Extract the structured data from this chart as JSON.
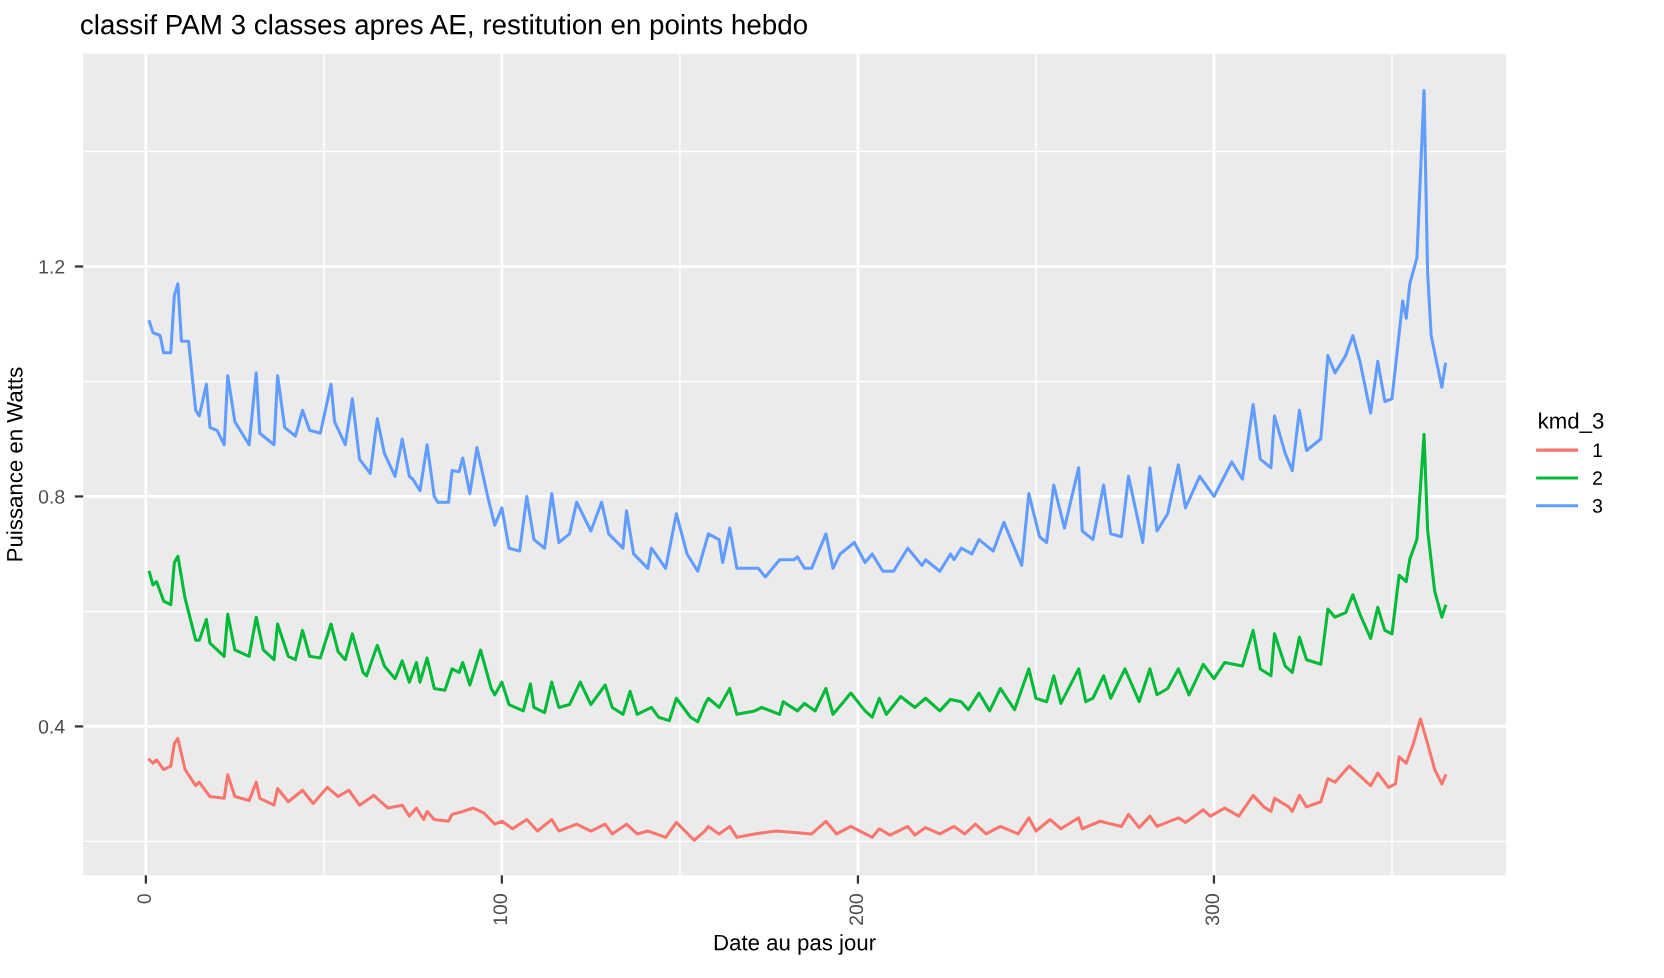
{
  "chart_data": {
    "type": "line",
    "title": "classif PAM 3 classes apres AE, restitution en points hebdo",
    "xlabel": "Date au pas jour",
    "ylabel": "Puissance en Watts",
    "legend_title": "kmd_3",
    "legend": "right",
    "grid": true,
    "marker": "none",
    "line_style": "solid",
    "xlim": [
      -17.6,
      382
    ],
    "xticks": [
      0,
      100,
      200,
      300
    ],
    "ylim": [
      0.141,
      1.57
    ],
    "yticks": [
      0.4,
      0.8,
      1.2
    ],
    "series": [
      {
        "name": "1",
        "color": "#f8766d",
        "x": [
          1,
          2,
          3,
          5,
          7,
          8,
          9,
          11,
          14,
          15,
          18,
          22,
          23,
          25,
          29,
          31,
          32,
          36,
          37,
          40,
          44,
          47,
          51,
          54,
          57,
          60,
          64,
          68,
          72,
          74,
          76,
          78,
          79,
          81,
          85,
          86,
          89,
          92,
          95,
          98,
          100,
          103,
          107,
          110,
          114,
          116,
          121,
          125,
          129,
          131,
          135,
          138,
          141,
          146,
          149,
          154,
          157,
          158,
          161,
          164,
          166,
          171,
          177,
          183,
          187,
          191,
          194,
          198,
          204,
          206,
          209,
          214,
          216,
          219,
          223,
          227,
          230,
          233,
          236,
          240,
          245,
          248,
          250,
          254,
          257,
          262,
          263,
          268,
          274,
          276,
          279,
          282,
          284,
          290,
          292,
          297,
          299,
          303,
          307,
          311,
          314,
          316,
          317,
          321,
          322,
          324,
          326,
          330,
          332,
          334,
          338,
          341,
          344,
          346,
          349,
          351,
          352,
          354,
          356,
          358,
          360,
          362,
          364,
          365
        ],
        "values": [
          0.342,
          0.336,
          0.342,
          0.325,
          0.331,
          0.37,
          0.379,
          0.325,
          0.297,
          0.303,
          0.278,
          0.275,
          0.316,
          0.278,
          0.271,
          0.303,
          0.275,
          0.263,
          0.292,
          0.269,
          0.289,
          0.266,
          0.294,
          0.278,
          0.289,
          0.263,
          0.28,
          0.258,
          0.263,
          0.244,
          0.258,
          0.238,
          0.252,
          0.238,
          0.235,
          0.247,
          0.252,
          0.258,
          0.249,
          0.23,
          0.235,
          0.222,
          0.238,
          0.218,
          0.238,
          0.218,
          0.23,
          0.218,
          0.23,
          0.213,
          0.23,
          0.213,
          0.218,
          0.207,
          0.233,
          0.202,
          0.218,
          0.226,
          0.213,
          0.226,
          0.207,
          0.213,
          0.218,
          0.215,
          0.213,
          0.235,
          0.213,
          0.226,
          0.207,
          0.222,
          0.211,
          0.226,
          0.211,
          0.224,
          0.213,
          0.226,
          0.213,
          0.23,
          0.213,
          0.226,
          0.213,
          0.241,
          0.218,
          0.238,
          0.222,
          0.241,
          0.222,
          0.235,
          0.226,
          0.247,
          0.224,
          0.244,
          0.226,
          0.241,
          0.233,
          0.255,
          0.244,
          0.258,
          0.244,
          0.28,
          0.26,
          0.252,
          0.275,
          0.26,
          0.252,
          0.28,
          0.26,
          0.269,
          0.309,
          0.303,
          0.331,
          0.314,
          0.297,
          0.319,
          0.294,
          0.3,
          0.347,
          0.336,
          0.37,
          0.413,
          0.37,
          0.325,
          0.3,
          0.314
        ]
      },
      {
        "name": "2",
        "color": "#00ba38",
        "x": [
          1,
          2,
          3,
          5,
          7,
          8,
          9,
          11,
          14,
          15,
          17,
          18,
          22,
          23,
          25,
          29,
          31,
          33,
          36,
          37,
          40,
          42,
          44,
          46,
          49,
          52,
          54,
          56,
          58,
          61,
          62,
          65,
          67,
          70,
          72,
          74,
          76,
          77,
          79,
          81,
          84,
          86,
          88,
          89,
          91,
          94,
          97,
          98,
          100,
          102,
          106,
          108,
          109,
          112,
          114,
          116,
          119,
          122,
          125,
          129,
          131,
          134,
          136,
          138,
          142,
          144,
          147,
          149,
          153,
          155,
          157,
          158,
          161,
          164,
          166,
          171,
          173,
          178,
          179,
          183,
          185,
          188,
          191,
          193,
          196,
          198,
          202,
          204,
          206,
          208,
          212,
          216,
          219,
          223,
          226,
          229,
          231,
          234,
          237,
          240,
          244,
          248,
          250,
          253,
          255,
          257,
          262,
          264,
          266,
          269,
          271,
          275,
          279,
          282,
          284,
          287,
          290,
          293,
          297,
          300,
          303,
          308,
          311,
          313,
          316,
          317,
          320,
          322,
          324,
          326,
          330,
          332,
          334,
          337,
          339,
          341,
          344,
          346,
          348,
          350,
          352,
          354,
          355,
          357,
          359,
          360,
          362,
          364,
          365
        ],
        "values": [
          0.668,
          0.646,
          0.652,
          0.618,
          0.612,
          0.685,
          0.696,
          0.623,
          0.55,
          0.55,
          0.586,
          0.545,
          0.522,
          0.595,
          0.533,
          0.522,
          0.59,
          0.533,
          0.516,
          0.578,
          0.522,
          0.516,
          0.567,
          0.522,
          0.519,
          0.578,
          0.53,
          0.516,
          0.561,
          0.494,
          0.488,
          0.541,
          0.505,
          0.483,
          0.514,
          0.477,
          0.511,
          0.477,
          0.519,
          0.466,
          0.463,
          0.5,
          0.494,
          0.511,
          0.472,
          0.533,
          0.466,
          0.455,
          0.477,
          0.438,
          0.427,
          0.474,
          0.433,
          0.424,
          0.477,
          0.433,
          0.438,
          0.477,
          0.438,
          0.472,
          0.433,
          0.421,
          0.461,
          0.421,
          0.433,
          0.416,
          0.41,
          0.449,
          0.416,
          0.408,
          0.438,
          0.449,
          0.433,
          0.466,
          0.421,
          0.427,
          0.433,
          0.421,
          0.443,
          0.427,
          0.44,
          0.427,
          0.466,
          0.421,
          0.443,
          0.458,
          0.427,
          0.416,
          0.449,
          0.421,
          0.452,
          0.433,
          0.449,
          0.427,
          0.447,
          0.443,
          0.429,
          0.458,
          0.427,
          0.466,
          0.429,
          0.5,
          0.449,
          0.443,
          0.488,
          0.44,
          0.5,
          0.443,
          0.449,
          0.488,
          0.449,
          0.5,
          0.443,
          0.5,
          0.455,
          0.466,
          0.5,
          0.455,
          0.508,
          0.483,
          0.511,
          0.505,
          0.567,
          0.5,
          0.488,
          0.561,
          0.505,
          0.494,
          0.555,
          0.516,
          0.508,
          0.604,
          0.59,
          0.598,
          0.629,
          0.595,
          0.553,
          0.607,
          0.567,
          0.561,
          0.663,
          0.652,
          0.691,
          0.725,
          0.908,
          0.742,
          0.635,
          0.59,
          0.609
        ]
      },
      {
        "name": "3",
        "color": "#619cff",
        "x": [
          1,
          2,
          4,
          5,
          7,
          8,
          9,
          10,
          12,
          14,
          15,
          17,
          18,
          20,
          22,
          23,
          25,
          29,
          31,
          32,
          36,
          37,
          39,
          42,
          44,
          46,
          49,
          52,
          53,
          56,
          58,
          60,
          63,
          65,
          67,
          70,
          72,
          74,
          75,
          77,
          79,
          81,
          82,
          85,
          86,
          88,
          89,
          91,
          93,
          96,
          98,
          100,
          102,
          105,
          107,
          109,
          112,
          114,
          116,
          119,
          121,
          125,
          128,
          130,
          134,
          135,
          137,
          141,
          142,
          146,
          149,
          152,
          155,
          158,
          161,
          162,
          164,
          166,
          172,
          174,
          178,
          182,
          183,
          185,
          187,
          191,
          193,
          195,
          199,
          202,
          204,
          207,
          210,
          214,
          218,
          219,
          223,
          226,
          227,
          229,
          232,
          234,
          238,
          241,
          246,
          248,
          251,
          253,
          255,
          258,
          262,
          263,
          266,
          269,
          271,
          274,
          276,
          280,
          282,
          284,
          287,
          290,
          292,
          296,
          300,
          305,
          308,
          311,
          313,
          316,
          317,
          320,
          322,
          324,
          326,
          330,
          332,
          334,
          337,
          339,
          341,
          344,
          346,
          348,
          350,
          353,
          354,
          355,
          357,
          359,
          360,
          361,
          364,
          365
        ],
        "values": [
          1.104,
          1.085,
          1.08,
          1.05,
          1.05,
          1.15,
          1.17,
          1.07,
          1.07,
          0.95,
          0.94,
          0.995,
          0.92,
          0.915,
          0.89,
          1.01,
          0.93,
          0.89,
          1.015,
          0.91,
          0.89,
          1.01,
          0.92,
          0.905,
          0.95,
          0.915,
          0.91,
          0.995,
          0.93,
          0.89,
          0.97,
          0.865,
          0.84,
          0.935,
          0.875,
          0.835,
          0.9,
          0.835,
          0.83,
          0.81,
          0.89,
          0.8,
          0.79,
          0.79,
          0.845,
          0.843,
          0.867,
          0.805,
          0.885,
          0.8,
          0.75,
          0.78,
          0.71,
          0.705,
          0.8,
          0.725,
          0.71,
          0.805,
          0.72,
          0.735,
          0.79,
          0.74,
          0.79,
          0.735,
          0.71,
          0.775,
          0.7,
          0.675,
          0.71,
          0.675,
          0.77,
          0.7,
          0.67,
          0.735,
          0.725,
          0.685,
          0.745,
          0.675,
          0.675,
          0.66,
          0.69,
          0.69,
          0.695,
          0.675,
          0.675,
          0.735,
          0.675,
          0.7,
          0.72,
          0.685,
          0.7,
          0.67,
          0.67,
          0.71,
          0.68,
          0.69,
          0.67,
          0.7,
          0.69,
          0.71,
          0.7,
          0.725,
          0.705,
          0.755,
          0.68,
          0.805,
          0.73,
          0.72,
          0.82,
          0.745,
          0.85,
          0.74,
          0.725,
          0.82,
          0.735,
          0.73,
          0.835,
          0.72,
          0.85,
          0.74,
          0.77,
          0.855,
          0.78,
          0.835,
          0.8,
          0.86,
          0.83,
          0.96,
          0.865,
          0.85,
          0.94,
          0.875,
          0.845,
          0.95,
          0.88,
          0.9,
          1.045,
          1.015,
          1.045,
          1.08,
          1.035,
          0.945,
          1.035,
          0.965,
          0.97,
          1.14,
          1.11,
          1.17,
          1.215,
          1.506,
          1.19,
          1.08,
          0.99,
          1.03
        ]
      }
    ]
  }
}
